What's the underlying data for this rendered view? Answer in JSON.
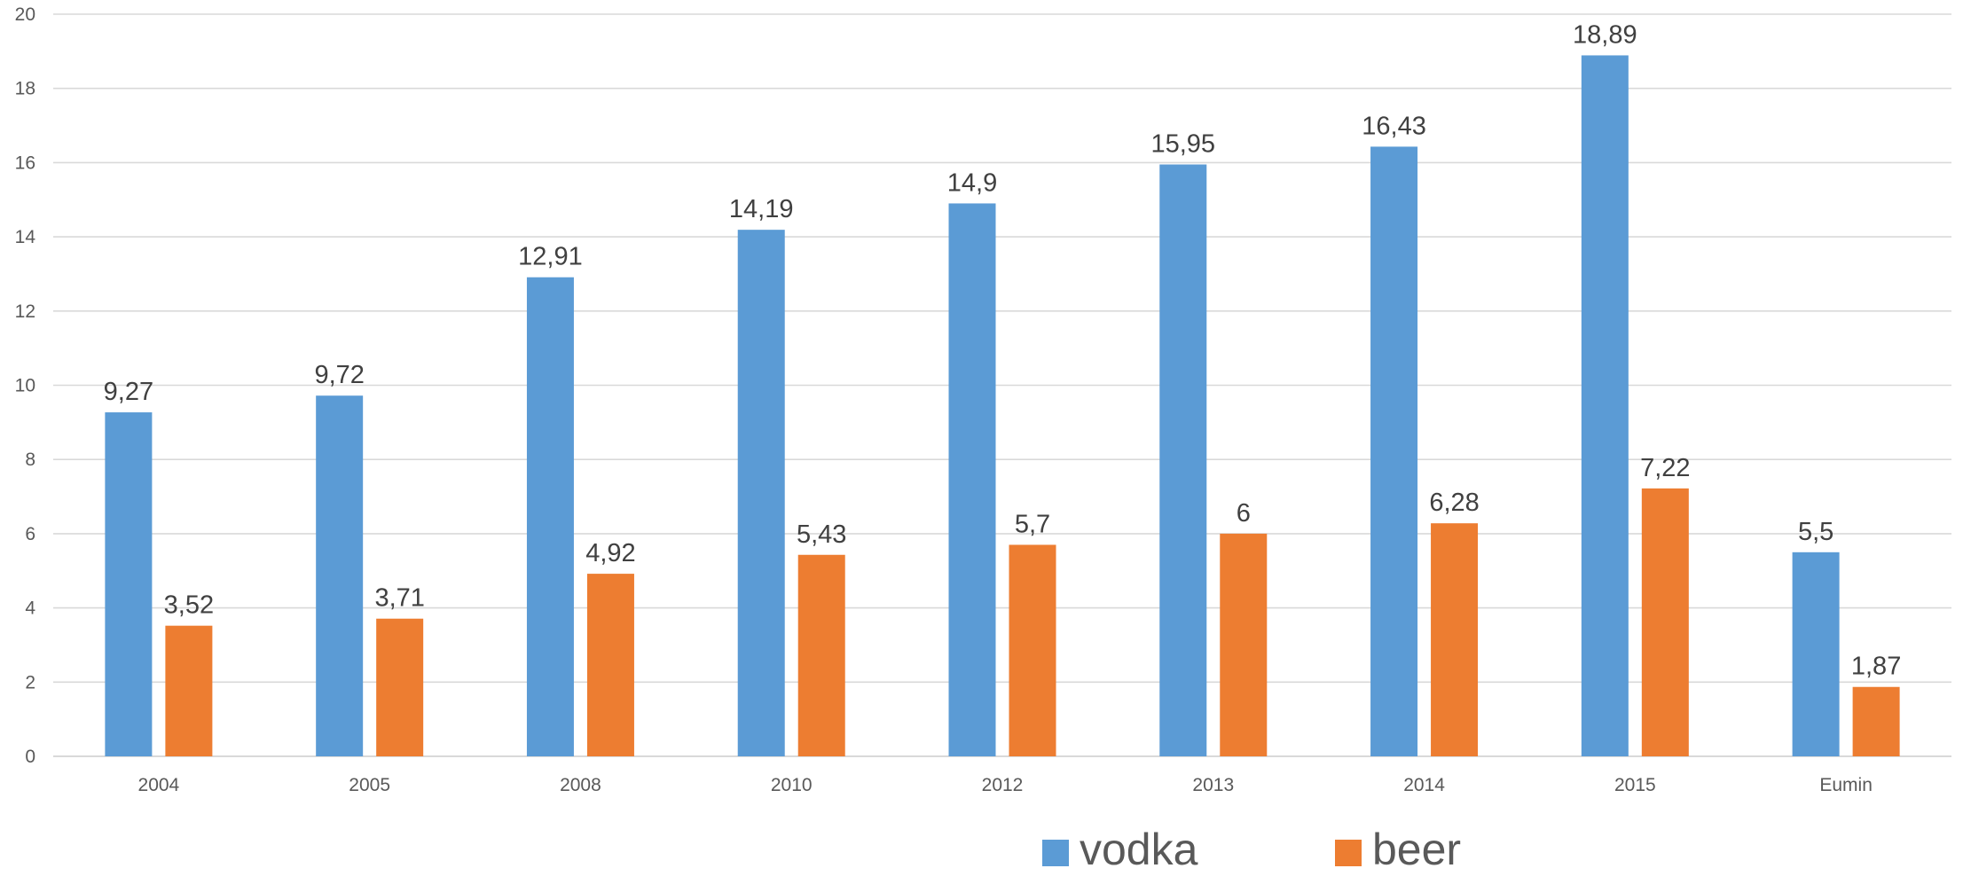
{
  "chart_data": {
    "type": "bar",
    "title": "",
    "xlabel": "",
    "ylabel": "",
    "categories": [
      "2004",
      "2005",
      "2008",
      "2010",
      "2012",
      "2013",
      "2014",
      "2015",
      "Eumin"
    ],
    "series": [
      {
        "name": "vodka",
        "color": "#5B9BD5",
        "values": [
          9.27,
          9.72,
          12.91,
          14.19,
          14.9,
          15.95,
          16.43,
          18.89,
          5.5
        ],
        "labels": [
          "9,27",
          "9,72",
          "12,91",
          "14,19",
          "14,9",
          "15,95",
          "16,43",
          "18,89",
          "5,5"
        ]
      },
      {
        "name": "beer",
        "color": "#ED7D31",
        "values": [
          3.52,
          3.71,
          4.92,
          5.43,
          5.7,
          6,
          6.28,
          7.22,
          1.87
        ],
        "labels": [
          "3,52",
          "3,71",
          "4,92",
          "5,43",
          "5,7",
          "6",
          "6,28",
          "7,22",
          "1,87"
        ]
      }
    ],
    "ylim": [
      0,
      20
    ],
    "yticks": [
      "0",
      "2",
      "4",
      "6",
      "8",
      "10",
      "12",
      "14",
      "16",
      "18",
      "20"
    ],
    "grid": true,
    "gridline_color": "#D9D9D9",
    "legend_position": "bottom"
  }
}
